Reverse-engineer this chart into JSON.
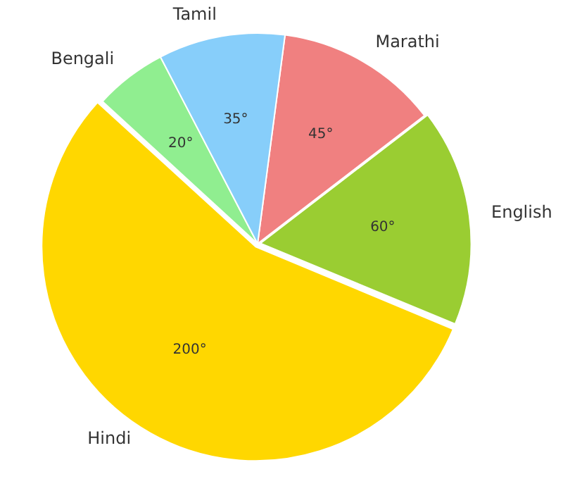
{
  "chart_data": {
    "type": "pie",
    "categories": [
      "Marathi",
      "English",
      "Hindi",
      "Bengali",
      "Tamil"
    ],
    "values": [
      45,
      60,
      200,
      20,
      35
    ],
    "colors": [
      "#f08080",
      "#9acd32",
      "#ffd700",
      "#90ee90",
      "#87cefa"
    ],
    "value_labels": [
      "45°",
      "60°",
      "200°",
      "20°",
      "35°"
    ]
  }
}
